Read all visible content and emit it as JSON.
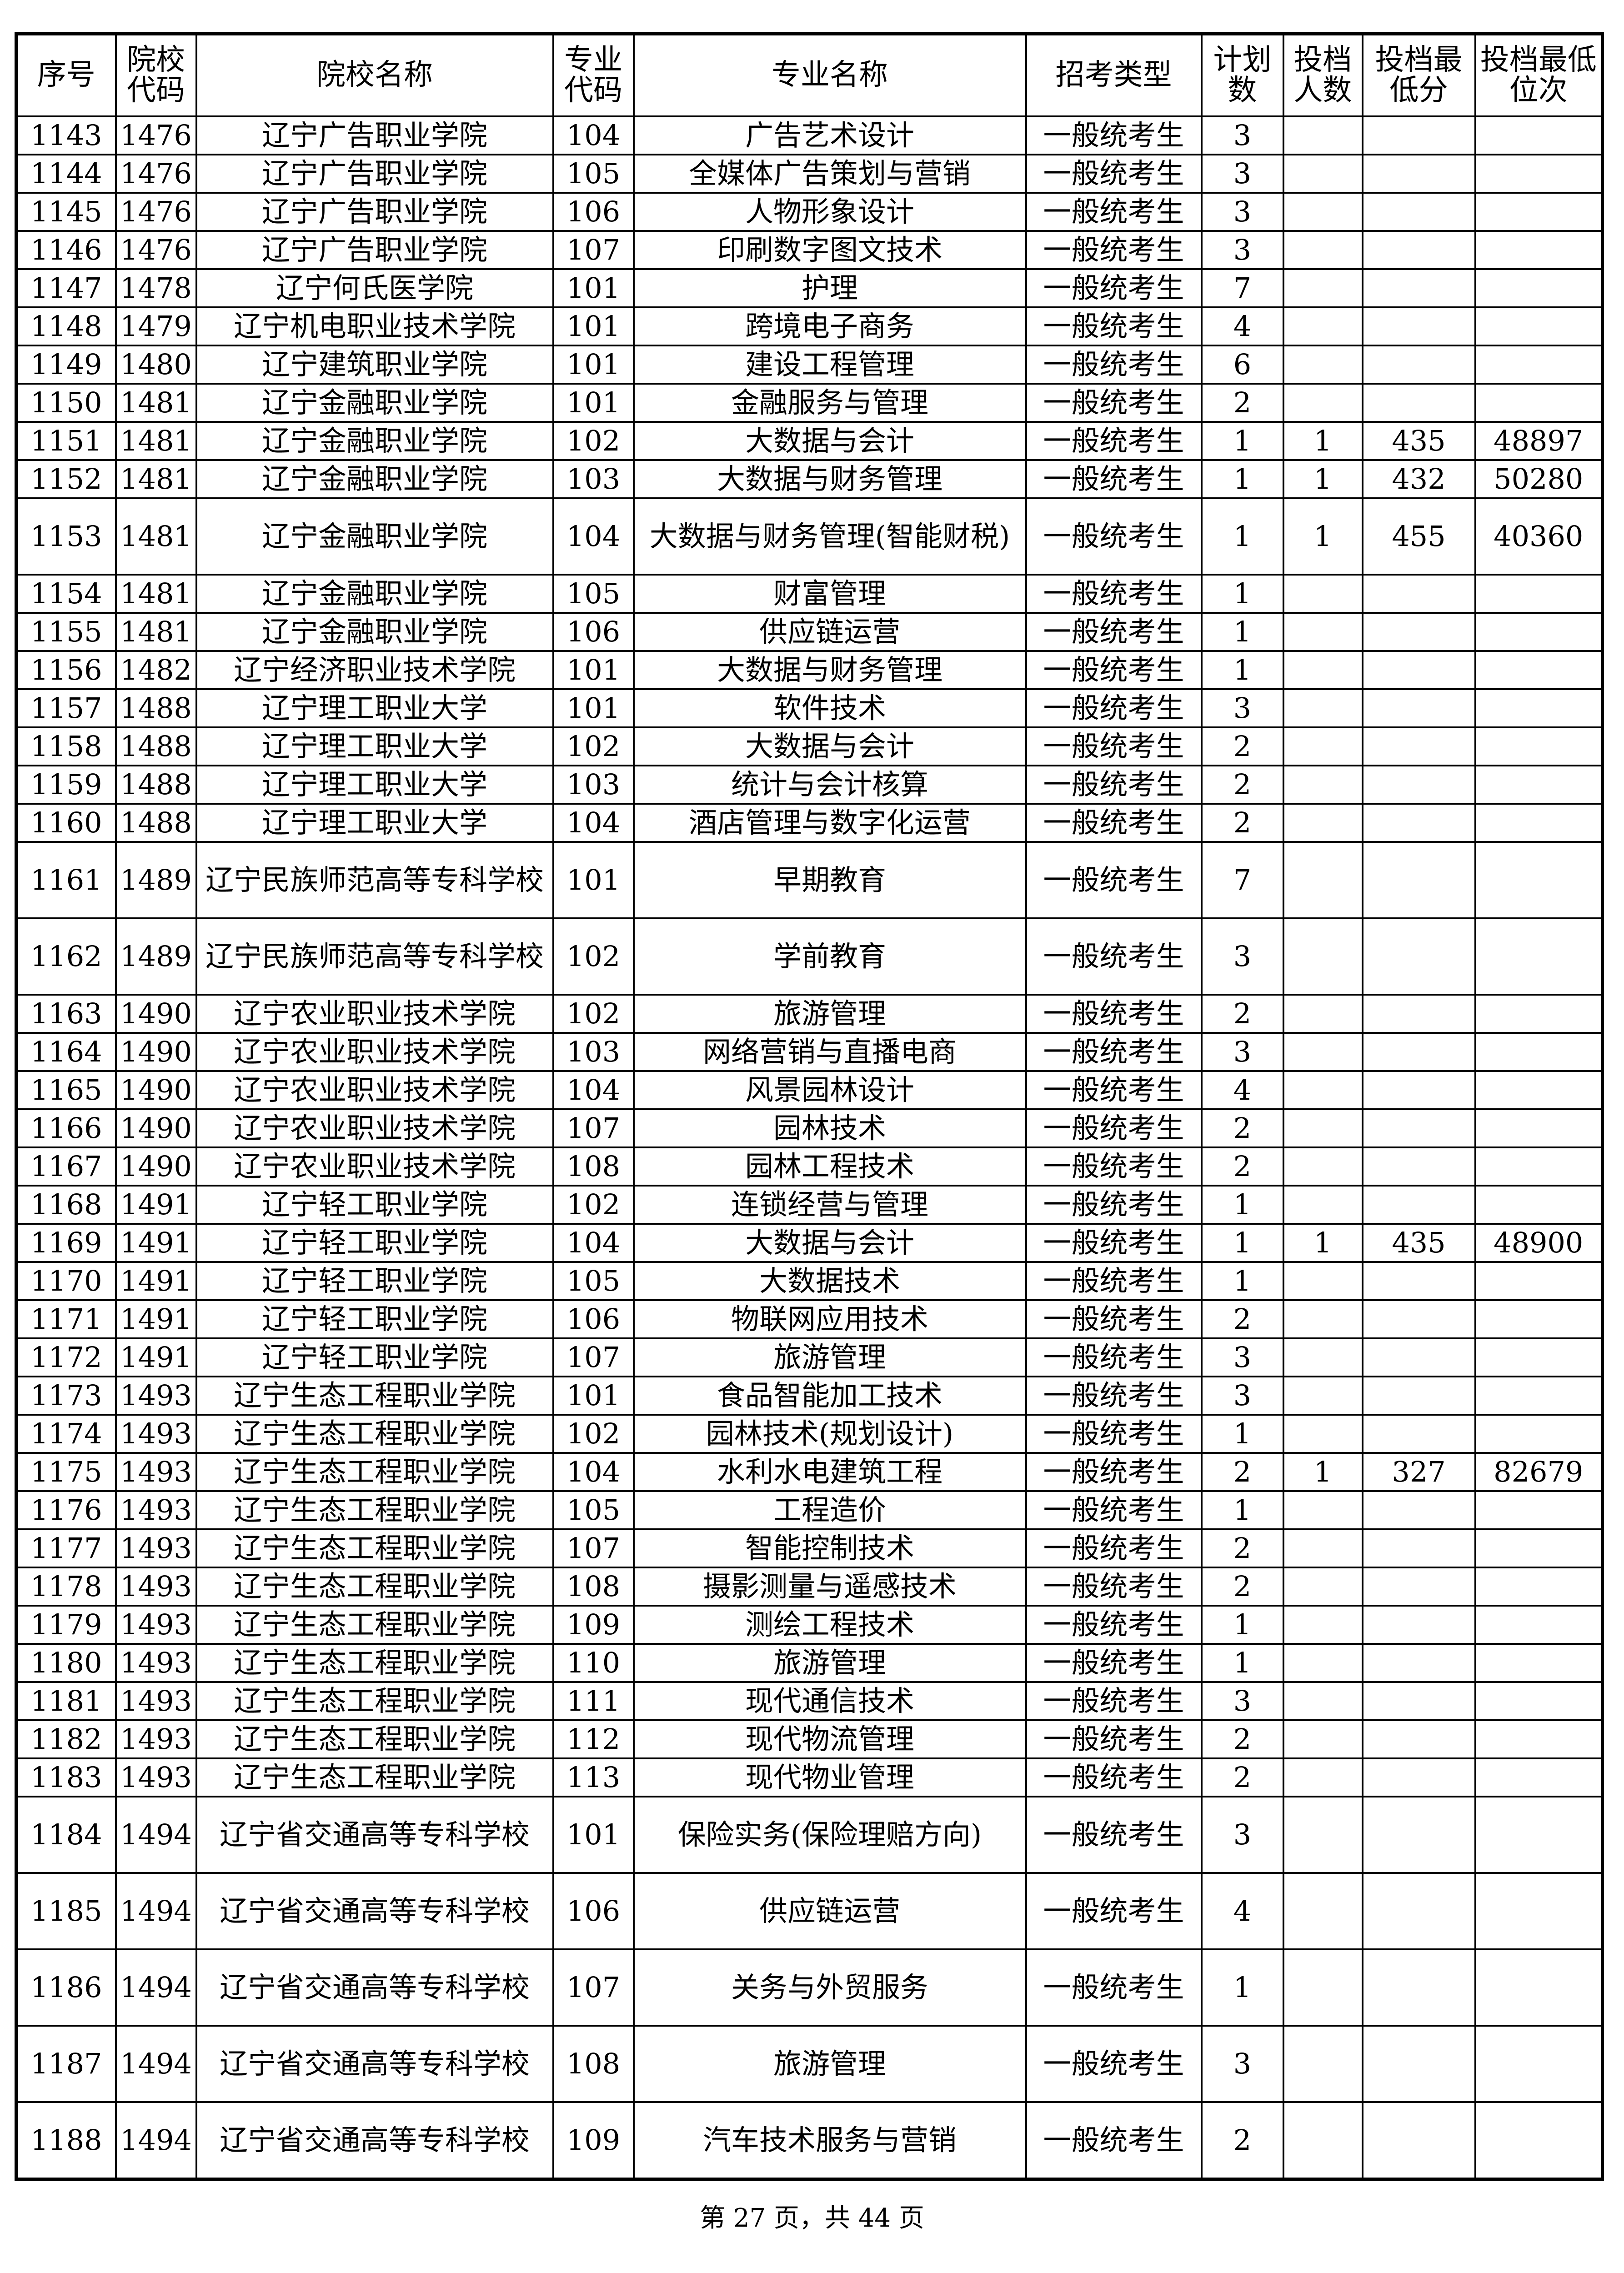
{
  "headers": [
    "序号",
    "院校代码",
    "院校名称",
    "专业代码",
    "专业名称",
    "招考类型",
    "计划数",
    "投档人数",
    "投档最低分",
    "投档最低位次"
  ],
  "rows": [
    [
      "1143",
      "1476",
      "辽宁广告职业学院",
      "104",
      "广告艺术设计",
      "一般统考生",
      "3",
      "",
      "",
      ""
    ],
    [
      "1144",
      "1476",
      "辽宁广告职业学院",
      "105",
      "全媒体广告策划与营销",
      "一般统考生",
      "3",
      "",
      "",
      ""
    ],
    [
      "1145",
      "1476",
      "辽宁广告职业学院",
      "106",
      "人物形象设计",
      "一般统考生",
      "3",
      "",
      "",
      ""
    ],
    [
      "1146",
      "1476",
      "辽宁广告职业学院",
      "107",
      "印刷数字图文技术",
      "一般统考生",
      "3",
      "",
      "",
      ""
    ],
    [
      "1147",
      "1478",
      "辽宁何氏医学院",
      "101",
      "护理",
      "一般统考生",
      "7",
      "",
      "",
      ""
    ],
    [
      "1148",
      "1479",
      "辽宁机电职业技术学院",
      "101",
      "跨境电子商务",
      "一般统考生",
      "4",
      "",
      "",
      ""
    ],
    [
      "1149",
      "1480",
      "辽宁建筑职业学院",
      "101",
      "建设工程管理",
      "一般统考生",
      "6",
      "",
      "",
      ""
    ],
    [
      "1150",
      "1481",
      "辽宁金融职业学院",
      "101",
      "金融服务与管理",
      "一般统考生",
      "2",
      "",
      "",
      ""
    ],
    [
      "1151",
      "1481",
      "辽宁金融职业学院",
      "102",
      "大数据与会计",
      "一般统考生",
      "1",
      "1",
      "435",
      "48897"
    ],
    [
      "1152",
      "1481",
      "辽宁金融职业学院",
      "103",
      "大数据与财务管理",
      "一般统考生",
      "1",
      "1",
      "432",
      "50280"
    ],
    [
      "1153",
      "1481",
      "辽宁金融职业学院",
      "104",
      "大数据与财务管理(智能财税)",
      "一般统考生",
      "1",
      "1",
      "455",
      "40360"
    ],
    [
      "1154",
      "1481",
      "辽宁金融职业学院",
      "105",
      "财富管理",
      "一般统考生",
      "1",
      "",
      "",
      ""
    ],
    [
      "1155",
      "1481",
      "辽宁金融职业学院",
      "106",
      "供应链运营",
      "一般统考生",
      "1",
      "",
      "",
      ""
    ],
    [
      "1156",
      "1482",
      "辽宁经济职业技术学院",
      "101",
      "大数据与财务管理",
      "一般统考生",
      "1",
      "",
      "",
      ""
    ],
    [
      "1157",
      "1488",
      "辽宁理工职业大学",
      "101",
      "软件技术",
      "一般统考生",
      "3",
      "",
      "",
      ""
    ],
    [
      "1158",
      "1488",
      "辽宁理工职业大学",
      "102",
      "大数据与会计",
      "一般统考生",
      "2",
      "",
      "",
      ""
    ],
    [
      "1159",
      "1488",
      "辽宁理工职业大学",
      "103",
      "统计与会计核算",
      "一般统考生",
      "2",
      "",
      "",
      ""
    ],
    [
      "1160",
      "1488",
      "辽宁理工职业大学",
      "104",
      "酒店管理与数字化运营",
      "一般统考生",
      "2",
      "",
      "",
      ""
    ],
    [
      "1161",
      "1489",
      "辽宁民族师范高等专科学校",
      "101",
      "早期教育",
      "一般统考生",
      "7",
      "",
      "",
      ""
    ],
    [
      "1162",
      "1489",
      "辽宁民族师范高等专科学校",
      "102",
      "学前教育",
      "一般统考生",
      "3",
      "",
      "",
      ""
    ],
    [
      "1163",
      "1490",
      "辽宁农业职业技术学院",
      "102",
      "旅游管理",
      "一般统考生",
      "2",
      "",
      "",
      ""
    ],
    [
      "1164",
      "1490",
      "辽宁农业职业技术学院",
      "103",
      "网络营销与直播电商",
      "一般统考生",
      "3",
      "",
      "",
      ""
    ],
    [
      "1165",
      "1490",
      "辽宁农业职业技术学院",
      "104",
      "风景园林设计",
      "一般统考生",
      "4",
      "",
      "",
      ""
    ],
    [
      "1166",
      "1490",
      "辽宁农业职业技术学院",
      "107",
      "园林技术",
      "一般统考生",
      "2",
      "",
      "",
      ""
    ],
    [
      "1167",
      "1490",
      "辽宁农业职业技术学院",
      "108",
      "园林工程技术",
      "一般统考生",
      "2",
      "",
      "",
      ""
    ],
    [
      "1168",
      "1491",
      "辽宁轻工职业学院",
      "102",
      "连锁经营与管理",
      "一般统考生",
      "1",
      "",
      "",
      ""
    ],
    [
      "1169",
      "1491",
      "辽宁轻工职业学院",
      "104",
      "大数据与会计",
      "一般统考生",
      "1",
      "1",
      "435",
      "48900"
    ],
    [
      "1170",
      "1491",
      "辽宁轻工职业学院",
      "105",
      "大数据技术",
      "一般统考生",
      "1",
      "",
      "",
      ""
    ],
    [
      "1171",
      "1491",
      "辽宁轻工职业学院",
      "106",
      "物联网应用技术",
      "一般统考生",
      "2",
      "",
      "",
      ""
    ],
    [
      "1172",
      "1491",
      "辽宁轻工职业学院",
      "107",
      "旅游管理",
      "一般统考生",
      "3",
      "",
      "",
      ""
    ],
    [
      "1173",
      "1493",
      "辽宁生态工程职业学院",
      "101",
      "食品智能加工技术",
      "一般统考生",
      "3",
      "",
      "",
      ""
    ],
    [
      "1174",
      "1493",
      "辽宁生态工程职业学院",
      "102",
      "园林技术(规划设计)",
      "一般统考生",
      "1",
      "",
      "",
      ""
    ],
    [
      "1175",
      "1493",
      "辽宁生态工程职业学院",
      "104",
      "水利水电建筑工程",
      "一般统考生",
      "2",
      "1",
      "327",
      "82679"
    ],
    [
      "1176",
      "1493",
      "辽宁生态工程职业学院",
      "105",
      "工程造价",
      "一般统考生",
      "1",
      "",
      "",
      ""
    ],
    [
      "1177",
      "1493",
      "辽宁生态工程职业学院",
      "107",
      "智能控制技术",
      "一般统考生",
      "2",
      "",
      "",
      ""
    ],
    [
      "1178",
      "1493",
      "辽宁生态工程职业学院",
      "108",
      "摄影测量与遥感技术",
      "一般统考生",
      "2",
      "",
      "",
      ""
    ],
    [
      "1179",
      "1493",
      "辽宁生态工程职业学院",
      "109",
      "测绘工程技术",
      "一般统考生",
      "1",
      "",
      "",
      ""
    ],
    [
      "1180",
      "1493",
      "辽宁生态工程职业学院",
      "110",
      "旅游管理",
      "一般统考生",
      "1",
      "",
      "",
      ""
    ],
    [
      "1181",
      "1493",
      "辽宁生态工程职业学院",
      "111",
      "现代通信技术",
      "一般统考生",
      "3",
      "",
      "",
      ""
    ],
    [
      "1182",
      "1493",
      "辽宁生态工程职业学院",
      "112",
      "现代物流管理",
      "一般统考生",
      "2",
      "",
      "",
      ""
    ],
    [
      "1183",
      "1493",
      "辽宁生态工程职业学院",
      "113",
      "现代物业管理",
      "一般统考生",
      "2",
      "",
      "",
      ""
    ],
    [
      "1184",
      "1494",
      "辽宁省交通高等专科学校",
      "101",
      "保险实务(保险理赔方向)",
      "一般统考生",
      "3",
      "",
      "",
      ""
    ],
    [
      "1185",
      "1494",
      "辽宁省交通高等专科学校",
      "106",
      "供应链运营",
      "一般统考生",
      "4",
      "",
      "",
      ""
    ],
    [
      "1186",
      "1494",
      "辽宁省交通高等专科学校",
      "107",
      "关务与外贸服务",
      "一般统考生",
      "1",
      "",
      "",
      ""
    ],
    [
      "1187",
      "1494",
      "辽宁省交通高等专科学校",
      "108",
      "旅游管理",
      "一般统考生",
      "3",
      "",
      "",
      ""
    ],
    [
      "1188",
      "1494",
      "辽宁省交通高等专科学校",
      "109",
      "汽车技术服务与营销",
      "一般统考生",
      "2",
      "",
      "",
      ""
    ]
  ],
  "footer": "第 27 页，共 44 页"
}
